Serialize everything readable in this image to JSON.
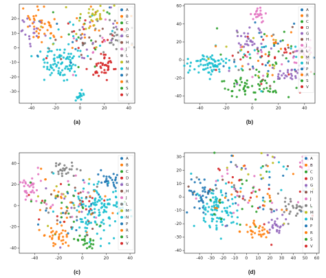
{
  "colors": {
    "A": "#1f77b4",
    "B": "#ff7f0e",
    "C": "#2ca02c",
    "D": "#d62728",
    "G": "#9467bd",
    "H": "#8c564b",
    "J": "#e377c2",
    "L": "#7f7f7f",
    "M": "#bcbd22",
    "N": "#17becf",
    "P": "#1f77b4",
    "R": "#ff7f0e",
    "S": "#2ca02c",
    "V": "#d62728"
  },
  "legend_labels": [
    "A",
    "B",
    "C",
    "D",
    "G",
    "H",
    "J",
    "L",
    "M",
    "N",
    "P",
    "R",
    "S",
    "V"
  ],
  "chart_data": [
    {
      "type": "scatter",
      "caption": "(a)",
      "xlim": [
        -50,
        45
      ],
      "ylim": [
        -38,
        30
      ],
      "xticks": [
        -40,
        -20,
        0,
        20,
        40
      ],
      "yticks": [
        20,
        10,
        0,
        -10,
        -20,
        -30
      ],
      "legend": "right"
    },
    {
      "type": "scatter",
      "caption": "(b)",
      "xlim": [
        -52,
        48
      ],
      "ylim": [
        -48,
        62
      ],
      "xticks": [
        -40,
        -20,
        0,
        20,
        40
      ],
      "yticks": [
        60,
        40,
        20,
        0,
        -20,
        -40
      ],
      "legend": "right"
    },
    {
      "type": "scatter",
      "caption": "(c)",
      "xlim": [
        -53,
        44
      ],
      "ylim": [
        -45,
        50
      ],
      "xticks": [
        -40,
        -20,
        0,
        20,
        40
      ],
      "yticks": [
        40,
        20,
        0,
        -20,
        -40
      ],
      "legend": "right"
    },
    {
      "type": "scatter",
      "caption": "(d)",
      "xlim": [
        -53,
        62
      ],
      "ylim": [
        -42,
        33
      ],
      "xticks": [
        -40,
        -30,
        -20,
        -10,
        0,
        10,
        20,
        30,
        40,
        50,
        60
      ],
      "yticks": [
        30,
        20,
        10,
        0,
        -10,
        -20,
        -30,
        -40
      ],
      "legend": "right"
    }
  ]
}
